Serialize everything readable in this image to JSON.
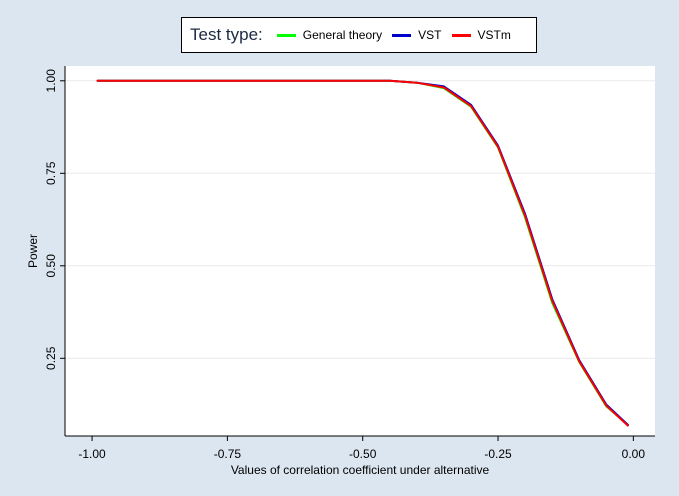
{
  "legend": {
    "title": "Test type:",
    "entries": [
      {
        "label": "General theory",
        "color": "#00ff00"
      },
      {
        "label": "VST",
        "color": "#0000cc"
      },
      {
        "label": "VSTm",
        "color": "#ff0000"
      }
    ]
  },
  "chart_data": {
    "type": "line",
    "xlabel": "Values of correlation coefficient under alternative",
    "ylabel": "Power",
    "xlim": [
      -1.05,
      0.04
    ],
    "ylim": [
      0.04,
      1.04
    ],
    "xticks": [
      -1.0,
      -0.75,
      -0.5,
      -0.25,
      0.0
    ],
    "xtick_labels": [
      "-1.00",
      "-0.75",
      "-0.50",
      "-0.25",
      "0.00"
    ],
    "yticks": [
      0.25,
      0.5,
      0.75,
      1.0
    ],
    "ytick_labels": [
      "0.25",
      "0.50",
      "0.75",
      "1.00"
    ],
    "grid": "horizontal",
    "legend_position": "top-center",
    "series": [
      {
        "name": "General theory",
        "color": "#00ff00",
        "x": [
          -0.99,
          -0.8,
          -0.6,
          -0.45,
          -0.4,
          -0.35,
          -0.3,
          -0.25,
          -0.2,
          -0.15,
          -0.1,
          -0.05,
          -0.01
        ],
        "y": [
          1.0,
          1.0,
          1.0,
          1.0,
          0.995,
          0.98,
          0.93,
          0.82,
          0.63,
          0.4,
          0.24,
          0.12,
          0.07
        ]
      },
      {
        "name": "VST",
        "color": "#0000cc",
        "x": [
          -0.99,
          -0.8,
          -0.6,
          -0.45,
          -0.4,
          -0.35,
          -0.3,
          -0.25,
          -0.2,
          -0.15,
          -0.1,
          -0.05,
          -0.01
        ],
        "y": [
          1.0,
          1.0,
          1.0,
          1.0,
          0.995,
          0.985,
          0.935,
          0.825,
          0.64,
          0.41,
          0.245,
          0.125,
          0.07
        ]
      },
      {
        "name": "VSTm",
        "color": "#ff0000",
        "x": [
          -0.99,
          -0.8,
          -0.6,
          -0.45,
          -0.4,
          -0.35,
          -0.3,
          -0.25,
          -0.2,
          -0.15,
          -0.1,
          -0.05,
          -0.01
        ],
        "y": [
          1.0,
          1.0,
          1.0,
          1.0,
          0.995,
          0.982,
          0.932,
          0.822,
          0.635,
          0.405,
          0.242,
          0.122,
          0.068
        ]
      }
    ]
  }
}
